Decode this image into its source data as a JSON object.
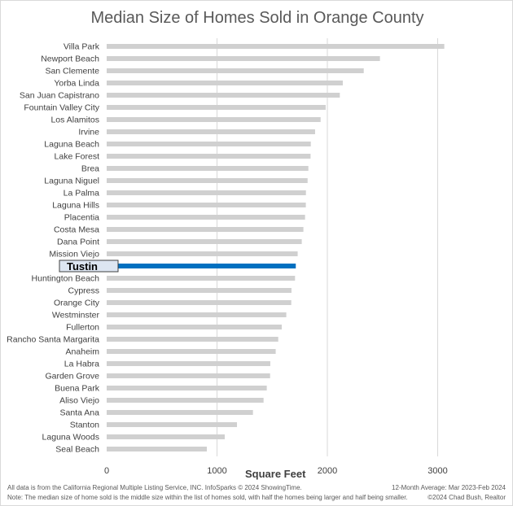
{
  "chart_data": {
    "type": "bar",
    "orientation": "horizontal",
    "title": "Median Size of Homes Sold in Orange County",
    "xlabel": "Square Feet",
    "ylabel": "",
    "xlim": [
      0,
      3300
    ],
    "xticks": [
      0,
      1000,
      2000,
      3000
    ],
    "grid": true,
    "highlight": "Tustin",
    "colors": {
      "bar": "#d0d0d0",
      "highlight": "#0070c0"
    },
    "categories": [
      "Villa Park",
      "Newport Beach",
      "San Clemente",
      "Yorba Linda",
      "San Juan Capistrano",
      "Fountain Valley City",
      "Los Alamitos",
      "Irvine",
      "Laguna Beach",
      "Lake Forest",
      "Brea",
      "Laguna Niguel",
      "La Palma",
      "Laguna Hills",
      "Placentia",
      "Costa Mesa",
      "Dana Point",
      "Mission Viejo",
      "Tustin",
      "Huntington Beach",
      "Cypress",
      "Orange City",
      "Westminster",
      "Fullerton",
      "Rancho Santa Margarita",
      "Anaheim",
      "La Habra",
      "Garden Grove",
      "Buena Park",
      "Aliso Viejo",
      "Santa Ana",
      "Stanton",
      "Laguna Woods",
      "Seal Beach"
    ],
    "values": [
      3060,
      2477,
      2330,
      2140,
      2113,
      1985,
      1939,
      1889,
      1850,
      1848,
      1828,
      1821,
      1806,
      1805,
      1798,
      1783,
      1768,
      1731,
      1714,
      1707,
      1675,
      1673,
      1628,
      1587,
      1555,
      1532,
      1483,
      1481,
      1451,
      1422,
      1326,
      1181,
      1070,
      908
    ]
  },
  "footer": {
    "source": "All data is from the California Regional Multiple Listing Service, INC. InfoSparks © 2024 ShowingTime.",
    "period": "12-Month Average: Mar 2023-Feb 2024",
    "note": "Note: The median size of home sold is the middle size within the list of homes sold, with half the homes being larger and half being smaller.",
    "credit": "©2024 Chad Bush, Realtor"
  }
}
